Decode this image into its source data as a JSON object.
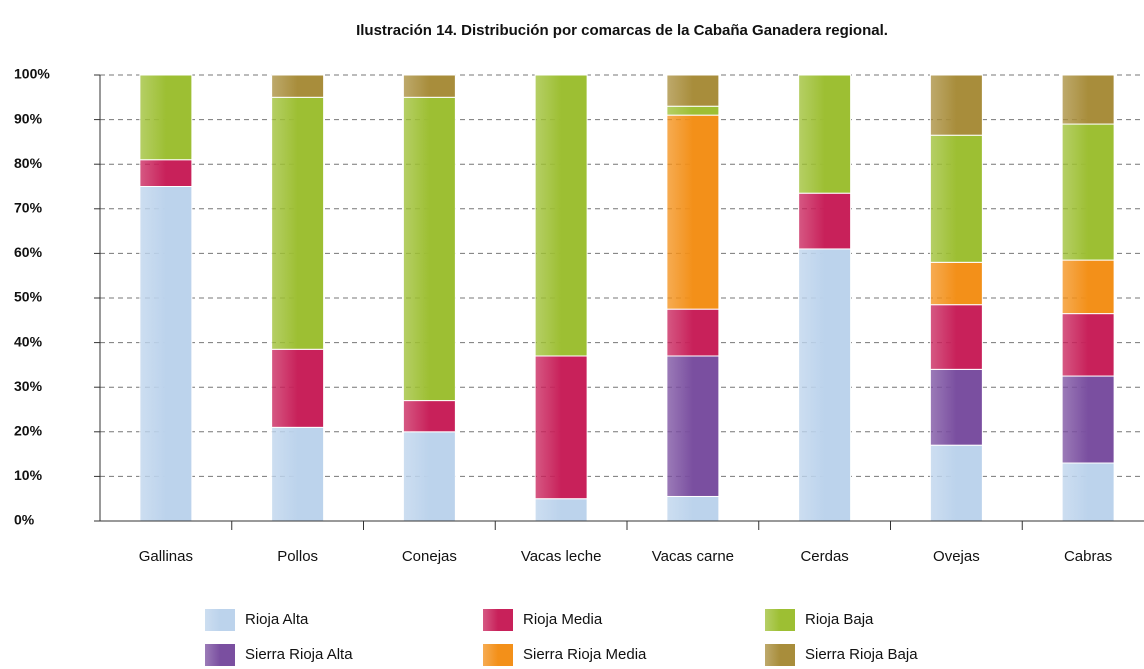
{
  "chart_data": {
    "type": "stacked_bar",
    "title": "Ilustración 14. Distribución por comarcas de la Cabaña Ganadera regional.",
    "categories": [
      "Gallinas",
      "Pollos",
      "Conejas",
      "Vacas leche",
      "Vacas carne",
      "Cerdas",
      "Ovejas",
      "Cabras"
    ],
    "series": [
      {
        "name": "Rioja Alta",
        "color": "#bcd3ec",
        "values": [
          75,
          21,
          20,
          5,
          5.5,
          61,
          17,
          13
        ]
      },
      {
        "name": "Sierra Rioja Alta",
        "color": "#7a4fa0",
        "values": [
          0,
          0,
          0,
          0,
          31.5,
          0,
          17,
          19.5
        ]
      },
      {
        "name": "Rioja Media",
        "color": "#c8215a",
        "values": [
          6,
          17.5,
          7,
          32,
          10.5,
          12.5,
          14.5,
          14
        ]
      },
      {
        "name": "Sierra Rioja Media",
        "color": "#f39019",
        "values": [
          0,
          0,
          0,
          0,
          43.5,
          0,
          9.5,
          12
        ]
      },
      {
        "name": "Rioja Baja",
        "color": "#9dbf33",
        "values": [
          19,
          56.5,
          68,
          63,
          2,
          26.5,
          28.5,
          30.5
        ]
      },
      {
        "name": "Sierra Rioja Baja",
        "color": "#a88d3b",
        "values": [
          0,
          5,
          5,
          0,
          7,
          0,
          13.5,
          11
        ]
      }
    ],
    "ylim": [
      0,
      100
    ],
    "yticks": [
      {
        "value": 0,
        "label": "0%"
      },
      {
        "value": 10,
        "label": "10%"
      },
      {
        "value": 20,
        "label": "20%"
      },
      {
        "value": 30,
        "label": "30%"
      },
      {
        "value": 40,
        "label": "40%"
      },
      {
        "value": 50,
        "label": "50%"
      },
      {
        "value": 60,
        "label": "60%"
      },
      {
        "value": 70,
        "label": "70%"
      },
      {
        "value": 80,
        "label": "80%"
      },
      {
        "value": 90,
        "label": "90%"
      },
      {
        "value": 100,
        "label": "100%"
      }
    ],
    "grid": true,
    "legend": "bottom"
  }
}
